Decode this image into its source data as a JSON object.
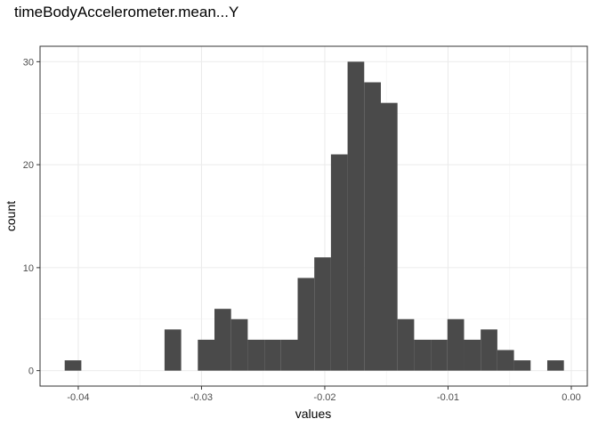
{
  "chart_data": {
    "type": "bar",
    "title": "timeBodyAccelerometer.mean...Y",
    "xlabel": "values",
    "ylabel": "count",
    "xlim": [
      -0.0431,
      0.0013
    ],
    "ylim": [
      -1.5,
      31.5
    ],
    "x_ticks": [
      -0.04,
      -0.03,
      -0.02,
      -0.01,
      0.0
    ],
    "x_tick_labels": [
      "-0.04",
      "-0.03",
      "-0.02",
      "-0.01",
      "0.00"
    ],
    "y_ticks": [
      0,
      10,
      20,
      30
    ],
    "y_tick_labels": [
      "0",
      "10",
      "20",
      "30"
    ],
    "grid": true,
    "bar_color": "#4a4a4a",
    "bins": [
      {
        "x0": -0.0411,
        "x1": -0.03975,
        "count": 1
      },
      {
        "x0": -0.03975,
        "x1": -0.0384,
        "count": 0
      },
      {
        "x0": -0.0384,
        "x1": -0.03705,
        "count": 0
      },
      {
        "x0": -0.03705,
        "x1": -0.0357,
        "count": 0
      },
      {
        "x0": -0.0357,
        "x1": -0.03435,
        "count": 0
      },
      {
        "x0": -0.03435,
        "x1": -0.033,
        "count": 0
      },
      {
        "x0": -0.033,
        "x1": -0.03165,
        "count": 4
      },
      {
        "x0": -0.03165,
        "x1": -0.0303,
        "count": 0
      },
      {
        "x0": -0.0303,
        "x1": -0.02895,
        "count": 3
      },
      {
        "x0": -0.02895,
        "x1": -0.0276,
        "count": 6
      },
      {
        "x0": -0.0276,
        "x1": -0.02625,
        "count": 5
      },
      {
        "x0": -0.02625,
        "x1": -0.0249,
        "count": 3
      },
      {
        "x0": -0.0249,
        "x1": -0.02355,
        "count": 3
      },
      {
        "x0": -0.02355,
        "x1": -0.0222,
        "count": 3
      },
      {
        "x0": -0.0222,
        "x1": -0.02085,
        "count": 9
      },
      {
        "x0": -0.02085,
        "x1": -0.0195,
        "count": 11
      },
      {
        "x0": -0.0195,
        "x1": -0.01815,
        "count": 21
      },
      {
        "x0": -0.01815,
        "x1": -0.0168,
        "count": 30
      },
      {
        "x0": -0.0168,
        "x1": -0.01545,
        "count": 28
      },
      {
        "x0": -0.01545,
        "x1": -0.0141,
        "count": 26
      },
      {
        "x0": -0.0141,
        "x1": -0.01275,
        "count": 5
      },
      {
        "x0": -0.01275,
        "x1": -0.0114,
        "count": 3
      },
      {
        "x0": -0.0114,
        "x1": -0.01005,
        "count": 3
      },
      {
        "x0": -0.01005,
        "x1": -0.0087,
        "count": 5
      },
      {
        "x0": -0.0087,
        "x1": -0.00735,
        "count": 3
      },
      {
        "x0": -0.00735,
        "x1": -0.006,
        "count": 4
      },
      {
        "x0": -0.006,
        "x1": -0.00465,
        "count": 2
      },
      {
        "x0": -0.00465,
        "x1": -0.0033,
        "count": 1
      },
      {
        "x0": -0.0033,
        "x1": -0.00195,
        "count": 0
      },
      {
        "x0": -0.00195,
        "x1": -0.0006,
        "count": 1
      }
    ]
  }
}
